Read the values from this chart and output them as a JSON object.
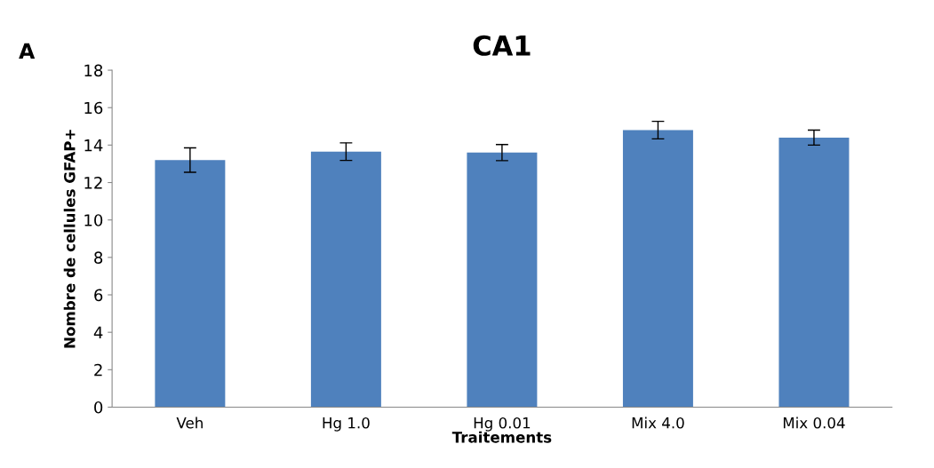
{
  "chart_data": {
    "type": "bar",
    "title": "CA1",
    "xlabel": "Traitements",
    "ylabel": "Nombre de cellules GFAP+",
    "annotations": [
      "A"
    ],
    "categories": [
      "Veh",
      "Hg 1.0",
      "Hg 0.01",
      "Mix 4.0",
      "Mix 0.04"
    ],
    "values": [
      13.2,
      13.65,
      13.6,
      14.8,
      14.4
    ],
    "errors": [
      0.65,
      0.47,
      0.43,
      0.47,
      0.4
    ],
    "color": "#4f81bd",
    "ylim": [
      0,
      18
    ],
    "yticks": [
      0,
      2,
      4,
      6,
      8,
      10,
      12,
      14,
      16,
      18
    ],
    "grid": false,
    "legend": false
  }
}
